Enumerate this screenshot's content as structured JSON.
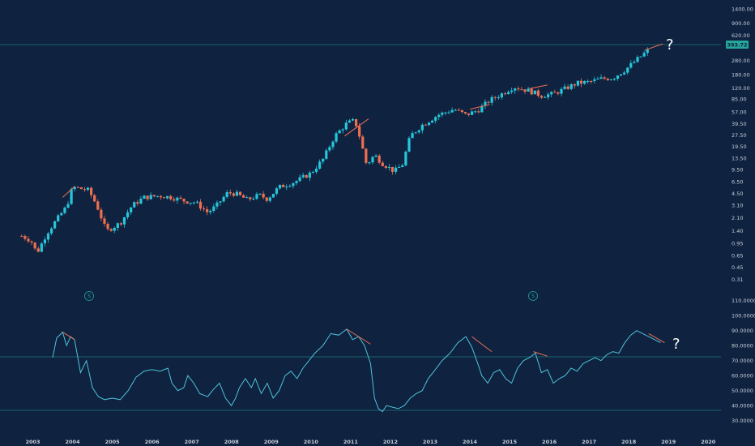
{
  "colors": {
    "background": "#0f2240",
    "up": "#26c6da",
    "down": "#ef6f50",
    "rsi_line": "#4fc3d9",
    "guide": "#26a69a",
    "divergence": "#ef6f50",
    "price_badge": "#26a69a"
  },
  "annotations": {
    "price_question": "?",
    "rsi_question": "?",
    "event_marker_1": "S",
    "event_marker_2": "S"
  },
  "price_badge": "393.72",
  "chart_data": [
    {
      "type": "candlestick",
      "title": "",
      "scale": "log",
      "ylim": [
        0.2,
        1600
      ],
      "y_ticks": [
        "1400.00",
        "900.00",
        "620.00",
        "393.72",
        "280.00",
        "180.00",
        "120.00",
        "85.00",
        "57.00",
        "39.50",
        "27.50",
        "19.50",
        "13.50",
        "9.50",
        "6.50",
        "4.50",
        "3.10",
        "2.10",
        "1.40",
        "0.95",
        "0.65",
        "0.45",
        "0.31"
      ],
      "last_price": 393.72,
      "x_ticks": [
        "2003",
        "2004",
        "2005",
        "2006",
        "2007",
        "2008",
        "2009",
        "2010",
        "2011",
        "2012",
        "2013",
        "2014",
        "2015",
        "2016",
        "2017",
        "2018",
        "2019",
        "2020"
      ],
      "x_range": [
        2002.5,
        2020.3
      ],
      "anchors_x": [
        2002.72,
        2002.95,
        2003.1,
        2003.35,
        2003.6,
        2003.85,
        2004.0,
        2004.4,
        2004.6,
        2004.85,
        2005.2,
        2005.5,
        2005.8,
        2006.2,
        2006.5,
        2006.8,
        2007.1,
        2007.4,
        2007.6,
        2007.9,
        2008.1,
        2008.4,
        2008.7,
        2008.9,
        2009.2,
        2009.6,
        2010.0,
        2010.3,
        2010.6,
        2010.9,
        2011.1,
        2011.2,
        2011.4,
        2011.6,
        2011.8,
        2012.1,
        2012.3,
        2012.5,
        2012.8,
        2013.2,
        2013.6,
        2013.9,
        2014.2,
        2014.5,
        2014.8,
        2015.1,
        2015.5,
        2015.8,
        2016.1,
        2016.4,
        2016.7,
        2017.0,
        2017.3,
        2017.6,
        2017.9,
        2018.2,
        2018.5
      ],
      "anchors_close": [
        1.2,
        1.05,
        0.7,
        1.3,
        2.0,
        3.0,
        5.5,
        5.0,
        3.2,
        1.4,
        1.8,
        3.1,
        4.0,
        4.2,
        4.0,
        3.6,
        3.4,
        2.5,
        3.0,
        4.6,
        4.5,
        3.7,
        4.3,
        3.8,
        5.5,
        6.5,
        8.5,
        13.0,
        27.0,
        40.0,
        44.0,
        30.0,
        11.0,
        15.0,
        11.5,
        9.0,
        11.0,
        27.0,
        38.0,
        52.0,
        62.0,
        52.0,
        60.0,
        82.0,
        100.0,
        125.0,
        110.0,
        95.0,
        100.0,
        118.0,
        140.0,
        145.0,
        160.0,
        165.0,
        210.0,
        290.0,
        393.72
      ]
    },
    {
      "type": "line",
      "name": "",
      "ylim": [
        25,
        112
      ],
      "y_ticks": [
        "110.0000",
        "100.0000",
        "90.0000",
        "80.0000",
        "70.0000",
        "60.0000",
        "50.0000",
        "40.0000",
        "30.0000"
      ],
      "reference_lines": [
        70,
        30
      ],
      "x": [
        2003.5,
        2003.6,
        2003.75,
        2003.85,
        2003.95,
        2004.05,
        2004.2,
        2004.35,
        2004.5,
        2004.65,
        2004.8,
        2005.0,
        2005.2,
        2005.4,
        2005.6,
        2005.8,
        2006.0,
        2006.2,
        2006.4,
        2006.5,
        2006.65,
        2006.8,
        2006.9,
        2007.05,
        2007.2,
        2007.4,
        2007.55,
        2007.7,
        2007.85,
        2008.0,
        2008.1,
        2008.2,
        2008.35,
        2008.5,
        2008.6,
        2008.75,
        2008.9,
        2009.05,
        2009.2,
        2009.35,
        2009.5,
        2009.65,
        2009.8,
        2009.95,
        2010.1,
        2010.3,
        2010.5,
        2010.7,
        2010.9,
        2011.05,
        2011.2,
        2011.35,
        2011.5,
        2011.6,
        2011.7,
        2011.8,
        2011.9,
        2012.05,
        2012.2,
        2012.35,
        2012.5,
        2012.65,
        2012.8,
        2012.95,
        2013.1,
        2013.3,
        2013.5,
        2013.7,
        2013.9,
        2014.05,
        2014.2,
        2014.3,
        2014.45,
        2014.6,
        2014.75,
        2014.9,
        2015.05,
        2015.2,
        2015.35,
        2015.5,
        2015.65,
        2015.8,
        2015.95,
        2016.1,
        2016.25,
        2016.4,
        2016.55,
        2016.7,
        2016.85,
        2017.0,
        2017.15,
        2017.3,
        2017.45,
        2017.6,
        2017.75,
        2017.9,
        2018.05,
        2018.2,
        2018.35,
        2018.5,
        2018.65,
        2018.8
      ],
      "y": [
        72,
        85,
        89,
        80,
        86,
        84,
        62,
        70,
        52,
        46,
        44,
        45,
        44,
        50,
        59,
        63,
        64,
        63,
        65,
        55,
        50,
        52,
        60,
        55,
        48,
        46,
        51,
        55,
        45,
        40,
        45,
        52,
        58,
        52,
        58,
        48,
        55,
        45,
        50,
        60,
        63,
        58,
        65,
        70,
        75,
        80,
        88,
        87,
        91,
        84,
        86,
        80,
        68,
        45,
        38,
        36,
        40,
        39,
        38,
        40,
        45,
        48,
        50,
        58,
        63,
        70,
        75,
        82,
        86,
        79,
        68,
        60,
        55,
        62,
        64,
        58,
        55,
        65,
        70,
        72,
        75,
        62,
        64,
        55,
        58,
        60,
        65,
        63,
        68,
        70,
        72,
        70,
        74,
        76,
        75,
        82,
        87,
        90,
        88,
        86,
        84,
        82
      ]
    }
  ]
}
